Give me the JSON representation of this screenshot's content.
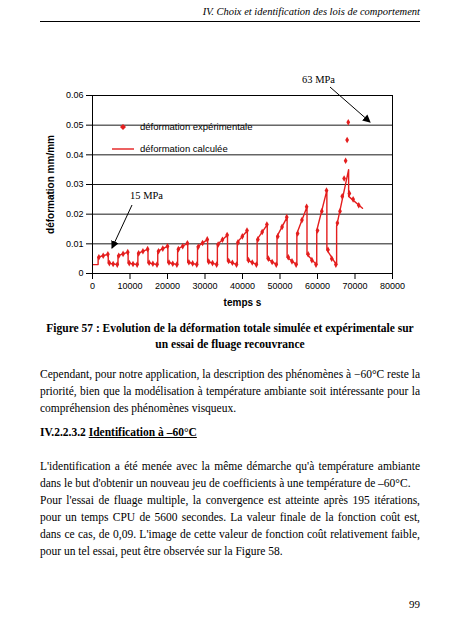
{
  "header": "IV. Choix et identification des lois de comportement",
  "chart_data": {
    "type": "scatter",
    "xlabel": "temps s",
    "ylabel": "déformation mm/mm",
    "xlim": [
      0,
      80000
    ],
    "xticks": [
      0,
      10000,
      20000,
      30000,
      40000,
      50000,
      60000,
      70000,
      80000
    ],
    "ylim": [
      0,
      0.06
    ],
    "yticks": [
      0,
      0.01,
      0.02,
      0.03,
      0.04,
      0.05,
      0.06
    ],
    "grid": true,
    "legend": "top-left",
    "annotations": [
      {
        "text": "15 MPa"
      },
      {
        "text": "63 MPa"
      }
    ],
    "series": [
      {
        "name": "déformation expérimentale",
        "type": "scatter",
        "marker": "diamond",
        "color": "#e41e1e",
        "x": [
          1700,
          2850,
          4100,
          4500,
          5500,
          6600,
          7000,
          8150,
          9400,
          9800,
          10800,
          11900,
          12300,
          13450,
          14700,
          15100,
          16100,
          17200,
          17600,
          18750,
          20000,
          20400,
          21400,
          22500,
          22900,
          24050,
          25300,
          25700,
          26700,
          27800,
          28200,
          29350,
          30600,
          31000,
          32000,
          33100,
          33500,
          34650,
          35900,
          36300,
          37300,
          38400,
          38800,
          39950,
          41200,
          41600,
          42600,
          43700,
          44100,
          45250,
          46500,
          46900,
          47900,
          49000,
          49400,
          50550,
          51800,
          52200,
          53200,
          54300,
          54700,
          55850,
          57100,
          57500,
          58500,
          59600,
          60000,
          61150,
          62400,
          62800,
          63800,
          64900,
          65300,
          66000,
          66600,
          67100,
          67500,
          67900,
          68200,
          68500,
          69500,
          71000
        ],
        "values": [
          0.0055,
          0.006,
          0.0065,
          0.0035,
          0.0032,
          0.003,
          0.006,
          0.0066,
          0.0072,
          0.0035,
          0.0032,
          0.003,
          0.0068,
          0.0075,
          0.0082,
          0.0036,
          0.0033,
          0.003,
          0.0075,
          0.0084,
          0.0092,
          0.0037,
          0.0033,
          0.003,
          0.0082,
          0.0092,
          0.0102,
          0.0038,
          0.0034,
          0.003,
          0.009,
          0.0103,
          0.0115,
          0.004,
          0.0035,
          0.003,
          0.0098,
          0.0114,
          0.013,
          0.0042,
          0.0036,
          0.003,
          0.0105,
          0.0125,
          0.0145,
          0.0045,
          0.0037,
          0.003,
          0.0115,
          0.014,
          0.0165,
          0.005,
          0.0039,
          0.003,
          0.0125,
          0.0157,
          0.019,
          0.0055,
          0.0041,
          0.003,
          0.0135,
          0.018,
          0.0225,
          0.0065,
          0.0045,
          0.003,
          0.0145,
          0.021,
          0.028,
          0.008,
          0.005,
          0.003,
          0.017,
          0.021,
          0.026,
          0.032,
          0.038,
          0.045,
          0.051,
          0.027,
          0.025,
          0.023
        ]
      },
      {
        "name": "déformation calculée",
        "type": "line",
        "line_style": "solid",
        "color": "#e41e1e",
        "x": [
          0,
          1500,
          1500,
          4200,
          4200,
          6700,
          6800,
          6800,
          9500,
          9500,
          12000,
          12100,
          12100,
          14800,
          14800,
          17300,
          17400,
          17400,
          20100,
          20100,
          22600,
          22700,
          22700,
          25400,
          25400,
          27900,
          28000,
          28000,
          30700,
          30700,
          33200,
          33300,
          33300,
          36000,
          36000,
          38500,
          38600,
          38600,
          41300,
          41300,
          43800,
          43900,
          43900,
          46600,
          46600,
          49100,
          49200,
          49200,
          51900,
          51900,
          54400,
          54500,
          54500,
          57200,
          57200,
          59700,
          59800,
          59800,
          62500,
          62500,
          65000,
          65100,
          65100,
          68300,
          68300,
          72000
        ],
        "values": [
          0.003,
          0.003,
          0.0055,
          0.0065,
          0.0035,
          0.003,
          0.003,
          0.006,
          0.0072,
          0.0035,
          0.003,
          0.003,
          0.0068,
          0.0082,
          0.0036,
          0.003,
          0.003,
          0.0075,
          0.0092,
          0.0037,
          0.003,
          0.003,
          0.0082,
          0.0102,
          0.0038,
          0.003,
          0.003,
          0.009,
          0.0115,
          0.004,
          0.003,
          0.003,
          0.0098,
          0.013,
          0.0042,
          0.003,
          0.003,
          0.0105,
          0.0145,
          0.0045,
          0.003,
          0.003,
          0.0115,
          0.0165,
          0.005,
          0.003,
          0.003,
          0.0125,
          0.019,
          0.0055,
          0.003,
          0.003,
          0.0135,
          0.0225,
          0.0065,
          0.003,
          0.003,
          0.0145,
          0.028,
          0.008,
          0.003,
          0.003,
          0.016,
          0.035,
          0.026,
          0.022
        ]
      }
    ]
  },
  "caption": "Figure 57 : Evolution de la déformation totale simulée et expérimentale sur un essai de fluage recouvrance",
  "paragraphs": [
    "Cependant, pour notre application, la description des phénomènes à −60°C reste la priorité, bien que la modélisation à température ambiante soit intéressante pour la compréhension des phénomènes visqueux.",
    "L'identification a été menée avec la même démarche qu'à température ambiante dans le but d'obtenir un nouveau jeu de coefficients à une température de –60°C.",
    "Pour l'essai de fluage multiple, la convergence est atteinte après 195 itérations, pour un temps CPU de 5600 secondes. La valeur finale de la fonction coût est, dans ce cas, de 0,09. L'image de cette valeur de fonction coût relativement faible, pour un tel essai, peut être observée sur la Figure 58."
  ],
  "heading": {
    "number": "IV.2.2.3.2",
    "title": "Identification à –60°C"
  },
  "page_number": "99"
}
